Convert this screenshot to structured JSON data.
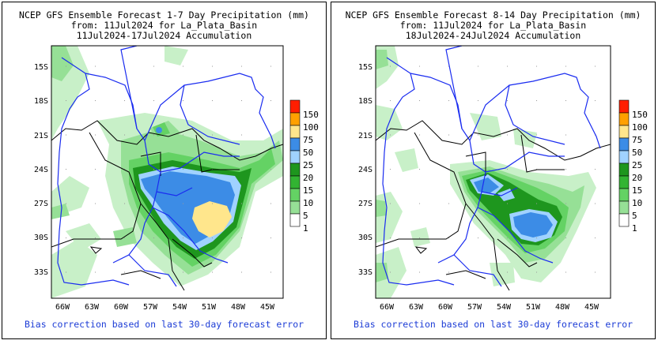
{
  "colors": {
    "river": "#1a2cf0",
    "border": "#000000",
    "bias_text": "#1c3cd6",
    "precip_1": "#c8f0c8",
    "precip_5": "#96e096",
    "precip_10": "#64d264",
    "precip_15": "#32b432",
    "precip_20": "#1e961e",
    "precip_25": "#a0d2ff",
    "precip_50": "#3c8ce6",
    "precip_75": "#ffe68c",
    "precip_100": "#ffa000",
    "precip_150": "#ff1e00"
  },
  "colorbar": {
    "labels": [
      "150",
      "100",
      "75",
      "50",
      "25",
      "20",
      "15",
      "10",
      "5",
      "1"
    ],
    "colors": [
      "#ff1e00",
      "#ffa000",
      "#ffe68c",
      "#3c8ce6",
      "#a0d2ff",
      "#1e961e",
      "#32b432",
      "#64d264",
      "#96e096",
      "#ffffff"
    ]
  },
  "axes": {
    "lat_labels": [
      "15S",
      "18S",
      "21S",
      "24S",
      "27S",
      "30S",
      "33S"
    ],
    "lon_labels": [
      "66W",
      "63W",
      "60W",
      "57W",
      "54W",
      "51W",
      "48W",
      "45W"
    ]
  },
  "panels": [
    {
      "title_line1": "NCEP GFS Ensemble Forecast 1-7 Day Precipitation (mm)",
      "title_line2": "from: 11Jul2024   for La_Plata_Basin",
      "title_line3": "11Jul2024-17Jul2024 Accumulation",
      "footer": "Bias correction based on last 30-day forecast error"
    },
    {
      "title_line1": "NCEP GFS Ensemble Forecast 8-14 Day Precipitation (mm)",
      "title_line2": "from: 11Jul2024   for La_Plata_Basin",
      "title_line3": "18Jul2024-24Jul2024 Accumulation",
      "footer": "Bias correction based on last 30-day forecast error"
    }
  ]
}
